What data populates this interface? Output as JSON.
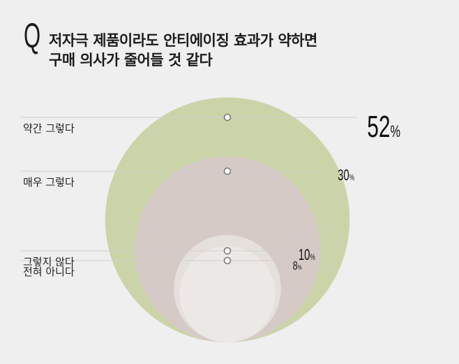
{
  "title_lines": [
    "저자극 제품이라도 안티에이징 효과가 약하면",
    "구매 의사가 줄어들 것 같다"
  ],
  "q_mark": "Q",
  "colors": {
    "background": "#efefef",
    "circles": [
      "#cbd4a9",
      "#d5cac6",
      "#e6e0dc",
      "#ece8e5"
    ],
    "leader": "#cfcfcf",
    "marker_fill": "#ffffff",
    "text": "#1c1c1c"
  },
  "chart_data": {
    "type": "bubble",
    "unit": "%",
    "categories": [
      "약간 그렇다",
      "매우 그렇다",
      "그렇지 않다",
      "전혀 아니다"
    ],
    "values": [
      52,
      30,
      10,
      8
    ],
    "value_labels": [
      "52",
      "30",
      "10",
      "8"
    ]
  }
}
